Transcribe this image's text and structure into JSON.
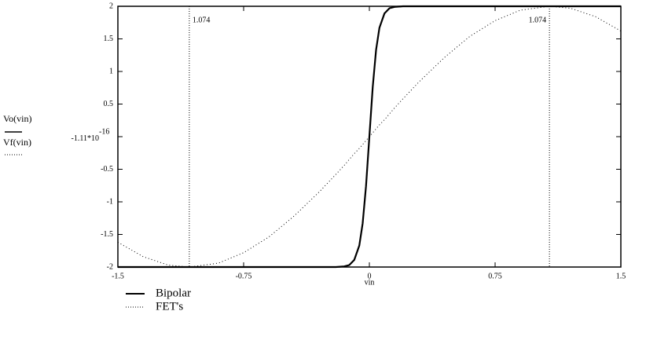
{
  "chart_data": {
    "type": "line",
    "x_label": "vin",
    "x": [
      -1.5,
      -1.35,
      -1.2,
      -1.074,
      -0.9,
      -0.75,
      -0.6,
      -0.45,
      -0.3,
      -0.2,
      -0.15,
      -0.12,
      -0.09,
      -0.06,
      -0.04,
      -0.02,
      0,
      0.02,
      0.04,
      0.06,
      0.09,
      0.12,
      0.15,
      0.2,
      0.3,
      0.45,
      0.6,
      0.75,
      0.9,
      1.074,
      1.2,
      1.35,
      1.5
    ],
    "series": [
      {
        "name": "Bipolar",
        "axis_label": "Vo(vin)",
        "color": "#000000",
        "dash": "solid",
        "values": [
          -2,
          -2,
          -2,
          -2,
          -2,
          -2,
          -2,
          -2,
          -2,
          -2,
          -1.99,
          -1.97,
          -1.89,
          -1.67,
          -1.33,
          -0.76,
          0,
          0.76,
          1.33,
          1.67,
          1.89,
          1.97,
          1.99,
          2,
          2,
          2,
          2,
          2,
          2,
          2,
          2,
          2,
          2
        ]
      },
      {
        "name": "FET's",
        "axis_label": "Vf(vin)",
        "color": "#000000",
        "dash": "dotted",
        "values": [
          -1.62,
          -1.84,
          -1.97,
          -2,
          -1.94,
          -1.78,
          -1.54,
          -1.22,
          -0.85,
          -0.58,
          -0.44,
          -0.35,
          -0.26,
          -0.18,
          -0.12,
          -0.06,
          0,
          0.06,
          0.12,
          0.18,
          0.26,
          0.35,
          0.44,
          0.58,
          0.85,
          1.22,
          1.54,
          1.78,
          1.94,
          2,
          1.97,
          1.84,
          1.62
        ]
      }
    ],
    "xlim": [
      -1.5,
      1.5
    ],
    "xticks": [
      -1.5,
      -0.75,
      0,
      0.75,
      1.5
    ],
    "ylim": [
      -2,
      2
    ],
    "yticks": [
      -2,
      -1.5,
      -1,
      -0.5,
      {
        "value": 0,
        "label": "-1.11*10",
        "exponent": "-16"
      },
      0.5,
      1,
      1.5,
      2
    ],
    "markers": [
      {
        "x": -1.074,
        "label": "1.074"
      },
      {
        "x": 1.074,
        "label": "1.074"
      }
    ]
  }
}
